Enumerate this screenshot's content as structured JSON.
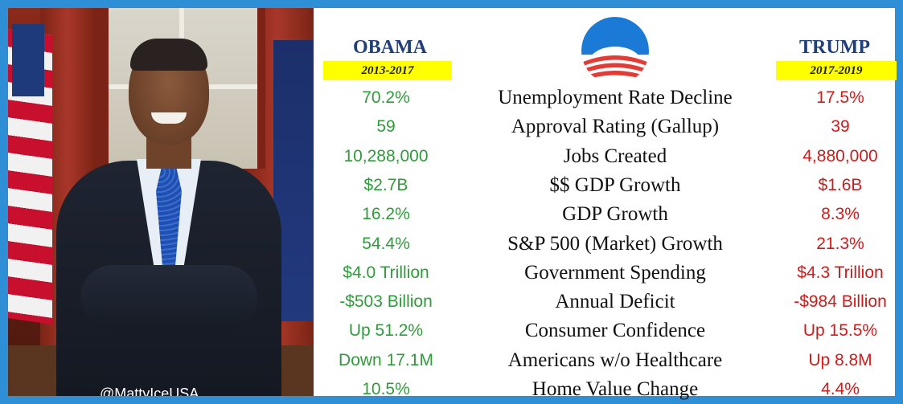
{
  "credit": "@MattyIceUSA",
  "left_column": {
    "name": "OBAMA",
    "years": "2013-2017"
  },
  "right_column": {
    "name": "TRUMP",
    "years": "2017-2019"
  },
  "colors": {
    "obama_values": "#2e9c3a",
    "trump_values": "#d11a1a",
    "header": "#1f3f7a",
    "year_badge": "#ffff00",
    "border": "#2f8fd6"
  },
  "rows": [
    {
      "obama": "70.2%",
      "metric": "Unemployment Rate Decline",
      "trump": "17.5%"
    },
    {
      "obama": "59",
      "metric": "Approval Rating (Gallup)",
      "trump": "39"
    },
    {
      "obama": "10,288,000",
      "metric": "Jobs Created",
      "trump": "4,880,000"
    },
    {
      "obama": "$2.7B",
      "metric": "$$ GDP Growth",
      "trump": "$1.6B"
    },
    {
      "obama": "16.2%",
      "metric": "GDP Growth",
      "trump": "8.3%"
    },
    {
      "obama": "54.4%",
      "metric": "S&P 500 (Market) Growth",
      "trump": "21.3%"
    },
    {
      "obama": "$4.0 Trillion",
      "metric": "Government Spending",
      "trump": "$4.3 Trillion"
    },
    {
      "obama": "-$503 Billion",
      "metric": "Annual Deficit",
      "trump": "-$984 Billion"
    },
    {
      "obama": "Up 51.2%",
      "metric": "Consumer Confidence",
      "trump": "Up 15.5%"
    },
    {
      "obama": "Down 17.1M",
      "metric": "Americans w/o Healthcare",
      "trump": "Up 8.8M"
    },
    {
      "obama": "10.5%",
      "metric": "Home Value Change",
      "trump": "4.4%"
    }
  ]
}
